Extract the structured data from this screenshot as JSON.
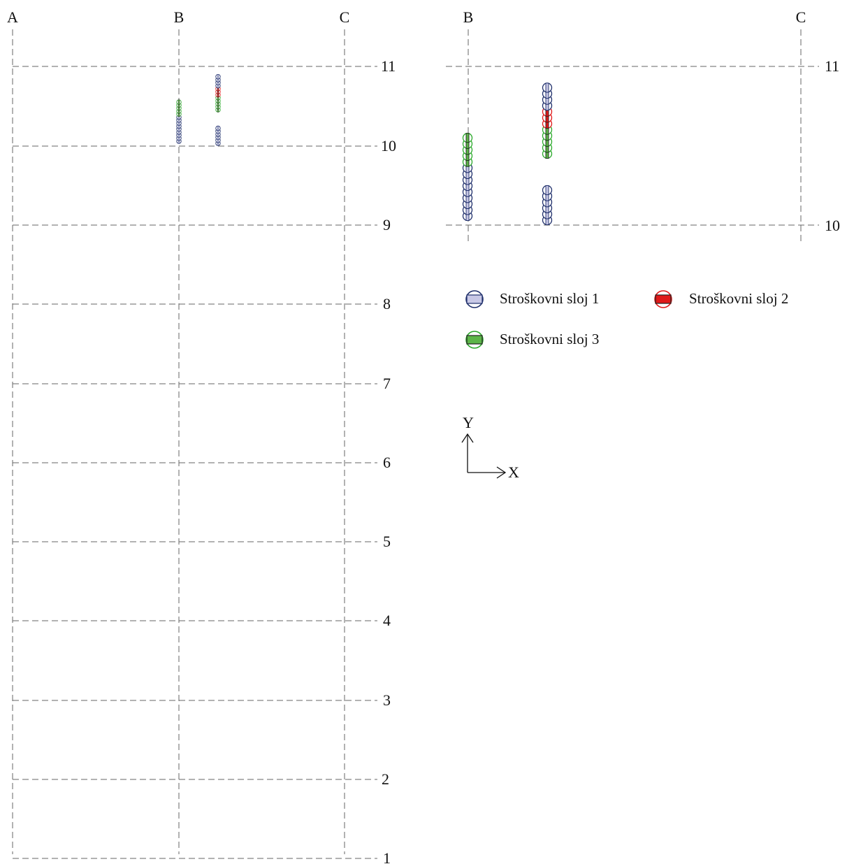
{
  "overview_plan": {
    "column_labels": [
      "A",
      "B",
      "C"
    ],
    "row_labels": [
      "11",
      "10",
      "9",
      "8",
      "7",
      "6",
      "5",
      "4",
      "3",
      "2",
      "1"
    ]
  },
  "detail_plan": {
    "column_labels": [
      "B",
      "C"
    ],
    "row_labels": [
      "11",
      "10"
    ]
  },
  "legend": {
    "layer1": "Stroškovni sloj 1",
    "layer2": "Stroškovni sloj 2",
    "layer3": "Stroškovni sloj 3"
  },
  "axes": {
    "x": "X",
    "y": "Y"
  },
  "colors": {
    "grid": "#666666",
    "layer1_stroke": "#1f2f6b",
    "layer1_fill": "#c8c8e6",
    "layer2_stroke": "#e01919",
    "layer2_fill": "#e01919",
    "layer3_stroke": "#2aa82a",
    "layer3_fill": "#5cb548"
  },
  "piles": {
    "column1_layers_bottom_to_top": [
      1,
      1,
      1,
      1,
      1,
      1,
      1,
      1,
      1,
      3,
      3,
      3,
      3,
      3
    ],
    "column2_lower_layers_bottom_to_top": [
      1,
      1,
      1,
      1,
      1,
      1
    ],
    "column2_upper_layers_bottom_to_top": [
      3,
      3,
      3,
      3,
      3,
      2,
      2,
      2,
      1,
      1,
      1,
      1
    ]
  }
}
